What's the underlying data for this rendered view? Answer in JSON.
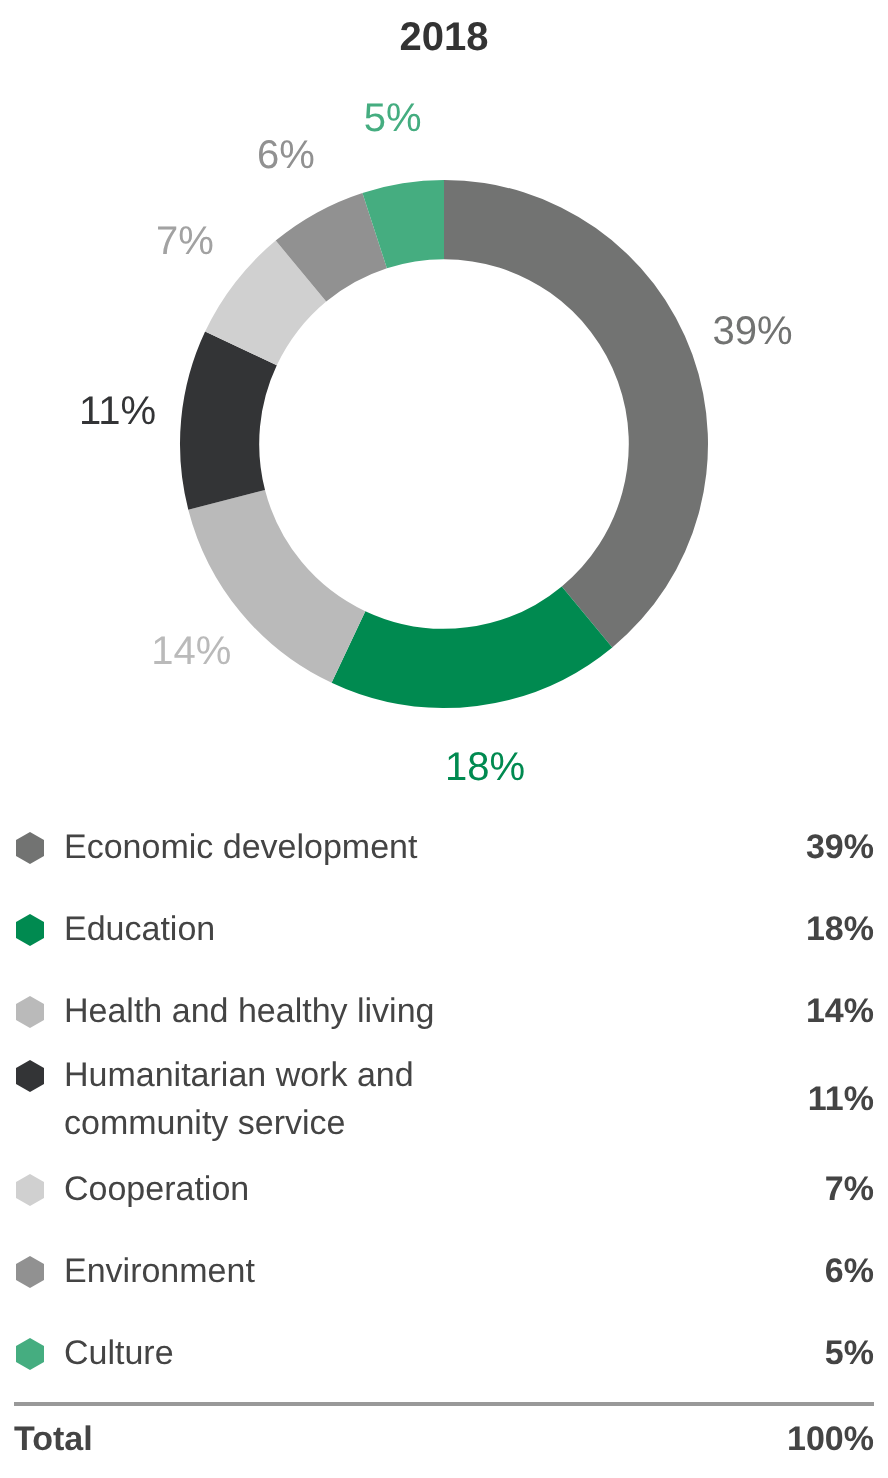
{
  "chart_data": {
    "type": "donut",
    "title": "2018",
    "categories": [
      "Economic development",
      "Education",
      "Health and healthy living",
      "Humanitarian work and community service",
      "Cooperation",
      "Environment",
      "Culture"
    ],
    "values": [
      39,
      18,
      14,
      11,
      7,
      6,
      5
    ],
    "value_labels": [
      "39%",
      "18%",
      "14%",
      "11%",
      "7%",
      "6%",
      "5%"
    ],
    "colors": [
      "#727372",
      "#008a50",
      "#bababa",
      "#333436",
      "#d0d0d0",
      "#919191",
      "#45ad80"
    ],
    "legend": "bottom",
    "annotations": [
      "Total",
      "100%"
    ]
  }
}
